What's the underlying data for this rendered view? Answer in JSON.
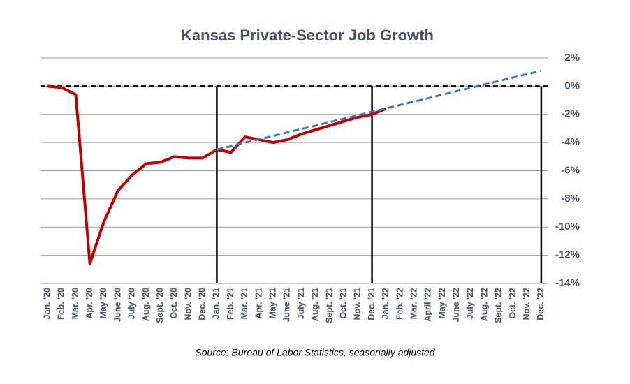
{
  "chart_data": {
    "type": "line",
    "title": "Kansas Private-Sector Job Growth",
    "source": "Source: Bureau of Labor Statistics, seasonally adjusted",
    "categories": [
      "Jan. '20",
      "Feb. '20",
      "Mar. '20",
      "Apr. '20",
      "May '20",
      "June '20",
      "July '20",
      "Aug. '20",
      "Sept. '20",
      "Oct. '20",
      "Nov. '20",
      "Dec. '20",
      "Jan. '21",
      "Feb. '21",
      "Mar. '21",
      "Apr. '21",
      "May '21",
      "June '21",
      "July '21",
      "Aug. '21",
      "Sept. '21",
      "Oct. '21",
      "Nov. '21",
      "Dec. '21",
      "Jan. '22",
      "Feb. '22",
      "Mar. '22",
      "April '22",
      "May '22",
      "June '22",
      "July '22",
      "Aug. '22",
      "Sept. '22",
      "Oct. '22",
      "Nov. '22",
      "Dec. '22"
    ],
    "series": [
      {
        "color": "#c00000",
        "dashed": false,
        "values": [
          0,
          -0.1,
          -0.6,
          -12.6,
          -9.6,
          -7.4,
          -6.3,
          -5.5,
          -5.4,
          -5.0,
          -5.1,
          -5.1,
          -4.5,
          -4.7,
          -3.6,
          -3.8,
          -4.0,
          -3.8,
          -3.4,
          -3.1,
          -2.8,
          -2.5,
          -2.2,
          -2.0,
          -1.6,
          null,
          null,
          null,
          null,
          null,
          null,
          null,
          null,
          null,
          null,
          null
        ]
      },
      {
        "color": "#4472c4",
        "dashed": true,
        "values": [
          null,
          null,
          null,
          null,
          null,
          null,
          null,
          null,
          null,
          null,
          null,
          null,
          -4.5,
          -4.26,
          -4.01,
          -3.77,
          -3.53,
          -3.28,
          -3.04,
          -2.8,
          -2.55,
          -2.31,
          -2.07,
          -1.82,
          -1.58,
          -1.33,
          -1.09,
          -0.85,
          -0.6,
          -0.36,
          -0.12,
          0.13,
          0.37,
          0.61,
          0.86,
          1.1
        ]
      }
    ],
    "ylim": [
      -14,
      2
    ],
    "yticks": [
      {
        "value": -14,
        "label": "-14%"
      },
      {
        "value": -12,
        "label": "-12%"
      },
      {
        "value": -10,
        "label": "-10%"
      },
      {
        "value": -8,
        "label": "-8%"
      },
      {
        "value": -6,
        "label": "-6%"
      },
      {
        "value": -4,
        "label": "-4%"
      },
      {
        "value": -2,
        "label": "-2%"
      },
      {
        "value": 0,
        "label": "0%"
      },
      {
        "value": 2,
        "label": "2%"
      }
    ],
    "grid": true,
    "y_axis_side": "right",
    "reference_line": 0,
    "vertical_lines": [
      "Jan. '21",
      "Dec. '21",
      "Dec. '22"
    ]
  }
}
